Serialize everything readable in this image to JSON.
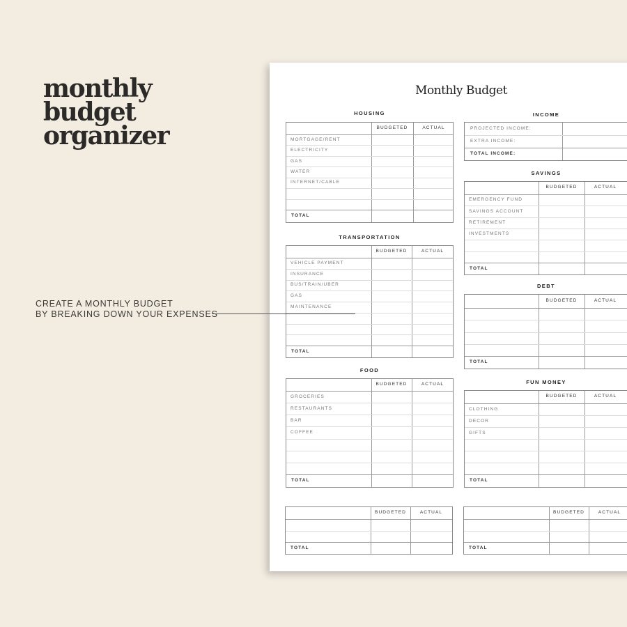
{
  "headline": [
    "monthly",
    "budget",
    "organizer"
  ],
  "caption": [
    "CREATE A MONTHLY BUDGET",
    "BY BREAKING DOWN YOUR EXPENSES"
  ],
  "document": {
    "title": "Monthly Budget",
    "columns": {
      "budgeted": "BUDGETED",
      "actual": "ACTUAL"
    },
    "total_label": "TOTAL",
    "sections": [
      {
        "id": "housing",
        "title": "HOUSING",
        "rows": [
          "MORTGAGE/RENT",
          "ELECTRICITY",
          "GAS",
          "WATER",
          "INTERNET/CABLE",
          "",
          ""
        ]
      },
      {
        "id": "transportation",
        "title": "TRANSPORTATION",
        "rows": [
          "VEHICLE PAYMENT",
          "INSURANCE",
          "BUS/TRAIN/UBER",
          "GAS",
          "MAINTENANCE",
          "",
          "",
          ""
        ]
      },
      {
        "id": "food",
        "title": "FOOD",
        "rows": [
          "GROCERIES",
          "RESTAURANTS",
          "BAR",
          "COFFEE",
          "",
          "",
          ""
        ]
      },
      {
        "id": "blank-left",
        "title": "",
        "rows": [
          "",
          ""
        ]
      },
      {
        "id": "savings",
        "title": "SAVINGS",
        "rows": [
          "EMERGENCY FUND",
          "SAVINGS ACCOUNT",
          "RETIREMENT",
          "INVESTMENTS",
          "",
          ""
        ]
      },
      {
        "id": "debt",
        "title": "DEBT",
        "rows": [
          "",
          "",
          "",
          ""
        ]
      },
      {
        "id": "fun-money",
        "title": "FUN MONEY",
        "rows": [
          "CLOTHING",
          "DECOR",
          "GIFTS",
          "",
          "",
          ""
        ]
      },
      {
        "id": "blank-right",
        "title": "",
        "rows": [
          "",
          ""
        ]
      }
    ],
    "income": {
      "title": "INCOME",
      "rows": [
        "PROJECTED INCOME:",
        "EXTRA INCOME:"
      ],
      "total": "TOTAL INCOME:"
    }
  }
}
